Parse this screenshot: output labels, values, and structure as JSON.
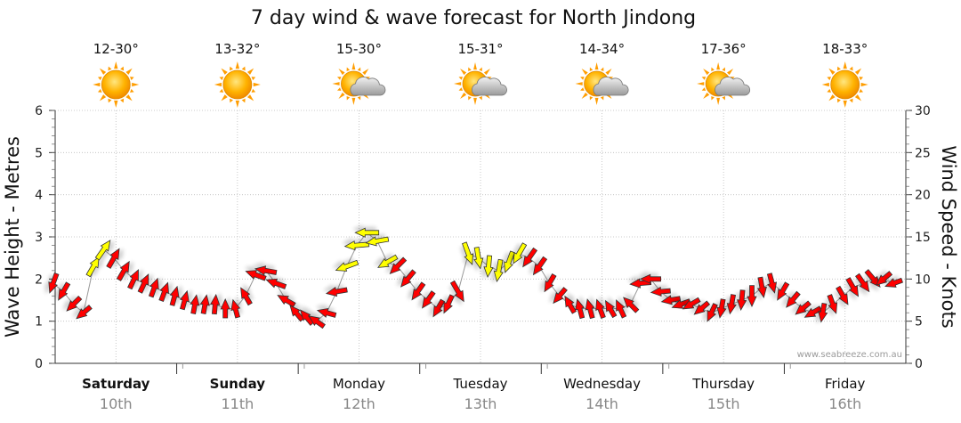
{
  "chart_data": {
    "type": "wind-wave-forecast",
    "title": "7 day wind & wave forecast for North Jindong",
    "y_left_label": "Wave Height - Metres",
    "y_right_label": "Wind Speed - Knots",
    "y_left_range": [
      0,
      6
    ],
    "y_right_range": [
      0,
      30
    ],
    "y_left_ticks": [
      "0",
      "1",
      "2",
      "3",
      "4",
      "5",
      "6"
    ],
    "y_right_ticks": [
      "0",
      "5",
      "10",
      "15",
      "20",
      "25",
      "30"
    ],
    "credit": "www.seabreeze.com.au",
    "colors": {
      "offshore": "#ffff00",
      "onshore": "#ff0000",
      "outline": "#333333",
      "wave_line": "#999999"
    },
    "days": [
      {
        "name": "Saturday",
        "date": "10th",
        "bold": true,
        "temp": "12-30°",
        "weather": "sunny-icon"
      },
      {
        "name": "Sunday",
        "date": "11th",
        "bold": true,
        "temp": "13-32°",
        "weather": "sunny-icon"
      },
      {
        "name": "Monday",
        "date": "12th",
        "bold": false,
        "temp": "15-30°",
        "weather": "partly-cloudy-icon"
      },
      {
        "name": "Tuesday",
        "date": "13th",
        "bold": false,
        "temp": "15-31°",
        "weather": "partly-cloudy-icon"
      },
      {
        "name": "Wednesday",
        "date": "14th",
        "bold": false,
        "temp": "14-34°",
        "weather": "partly-cloudy-icon"
      },
      {
        "name": "Thursday",
        "date": "15th",
        "bold": false,
        "temp": "17-36°",
        "weather": "partly-cloudy-icon"
      },
      {
        "name": "Friday",
        "date": "16th",
        "bold": false,
        "temp": "18-33°",
        "weather": "sunny-icon"
      }
    ],
    "wave_height_m": [
      1.9,
      1.7,
      1.4,
      1.2,
      2.3,
      2.7,
      2.5,
      2.2,
      2.0,
      1.9,
      1.8,
      1.7,
      1.6,
      1.5,
      1.4,
      1.4,
      1.4,
      1.3,
      1.3,
      1.6,
      2.1,
      2.2,
      1.9,
      1.5,
      1.2,
      1.1,
      1.0,
      1.2,
      1.7,
      2.3,
      2.8,
      3.1,
      2.9,
      2.4,
      2.3,
      2.0,
      1.7,
      1.5,
      1.3,
      1.4,
      1.7,
      2.6,
      2.5,
      2.3,
      2.2,
      2.4,
      2.6,
      2.5,
      2.3,
      1.9,
      1.6,
      1.4,
      1.3,
      1.3,
      1.3,
      1.3,
      1.3,
      1.4,
      1.9,
      2.0,
      1.7,
      1.5,
      1.4,
      1.4,
      1.3,
      1.2,
      1.3,
      1.4,
      1.5,
      1.6,
      1.8,
      1.9,
      1.7,
      1.5,
      1.3,
      1.2,
      1.2,
      1.4,
      1.6,
      1.8,
      1.9,
      2.0,
      2.0,
      1.9
    ],
    "wind_knots": [
      10,
      8,
      7,
      6,
      12,
      14,
      12,
      11,
      10,
      9,
      8,
      8,
      8,
      7,
      7,
      7,
      8,
      7,
      6,
      7,
      11,
      12,
      10,
      8,
      7,
      6,
      6,
      7,
      11,
      15,
      17,
      16,
      14,
      12,
      11,
      10,
      9,
      8,
      7,
      8,
      14,
      15,
      12,
      12,
      13,
      13,
      14,
      12,
      10,
      8,
      7,
      7,
      8,
      8,
      8,
      6,
      7,
      8,
      11,
      10,
      8,
      7,
      7,
      7,
      6,
      7,
      7,
      8,
      9,
      11,
      10,
      9,
      8,
      7,
      6,
      6,
      7,
      8,
      9,
      10,
      10,
      11,
      7,
      5
    ],
    "wind_dir_deg": [
      110,
      120,
      135,
      140,
      300,
      305,
      300,
      300,
      295,
      295,
      290,
      290,
      285,
      285,
      280,
      280,
      275,
      270,
      255,
      240,
      200,
      190,
      200,
      210,
      230,
      230,
      215,
      195,
      170,
      160,
      175,
      180,
      170,
      150,
      135,
      130,
      125,
      125,
      120,
      115,
      60,
      70,
      80,
      95,
      100,
      110,
      120,
      125,
      125,
      120,
      130,
      240,
      255,
      255,
      250,
      240,
      245,
      225,
      175,
      180,
      175,
      170,
      160,
      150,
      140,
      115,
      100,
      100,
      95,
      90,
      80,
      75,
      120,
      130,
      140,
      150,
      100,
      70,
      60,
      60,
      55,
      50,
      140,
      160
    ],
    "offshore_points": [
      4,
      5,
      29,
      30,
      31,
      32,
      33,
      41,
      42,
      43,
      44,
      45,
      46
    ]
  }
}
